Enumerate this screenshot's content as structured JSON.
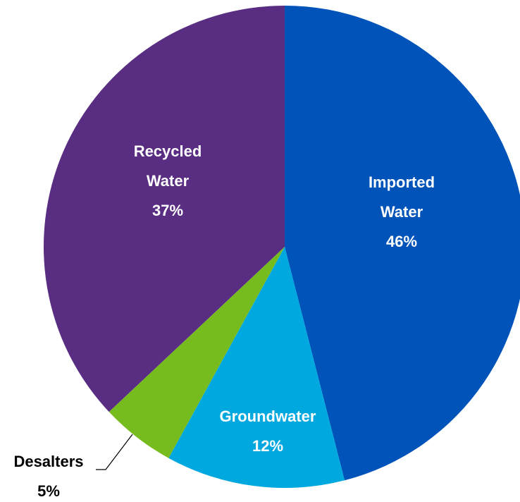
{
  "chart_data": {
    "type": "pie",
    "title": "",
    "start_angle_deg": 0,
    "direction": "clockwise",
    "slices": [
      {
        "name": "Imported Water",
        "label_lines": [
          "Imported",
          "Water",
          "46%"
        ],
        "value": 46,
        "color": "#0053B9",
        "label_color": "#ffffff",
        "label_position": "inside"
      },
      {
        "name": "Groundwater",
        "label_lines": [
          "Groundwater",
          "12%"
        ],
        "value": 12,
        "color": "#00A8E0",
        "label_color": "#ffffff",
        "label_position": "inside"
      },
      {
        "name": "Desalters",
        "label_lines": [
          "Desalters",
          "5%"
        ],
        "value": 5,
        "color": "#77BC1F",
        "label_color": "#000000",
        "label_position": "outside-leader"
      },
      {
        "name": "Recycled Water",
        "label_lines": [
          "Recycled",
          "Water",
          "37%"
        ],
        "value": 37,
        "color": "#592D82",
        "label_color": "#ffffff",
        "label_position": "inside"
      }
    ]
  }
}
